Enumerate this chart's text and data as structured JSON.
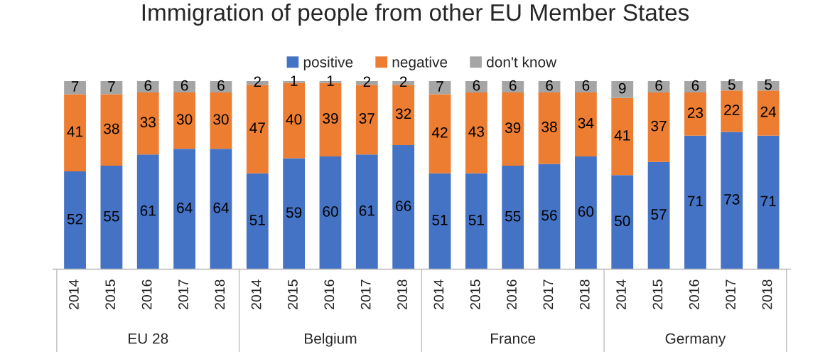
{
  "chart_data": {
    "type": "bar",
    "title": "Immigration of people from other EU Member States",
    "categories": [
      "2014",
      "2015",
      "2016",
      "2017",
      "2018",
      "2014",
      "2015",
      "2016",
      "2017",
      "2018",
      "2014",
      "2015",
      "2016",
      "2017",
      "2018",
      "2014",
      "2015",
      "2016",
      "2017",
      "2018"
    ],
    "series": [
      {
        "name": "positive",
        "color": "#4472c4",
        "values": [
          52,
          55,
          61,
          64,
          64,
          51,
          59,
          60,
          61,
          66,
          51,
          51,
          55,
          56,
          60,
          50,
          57,
          71,
          73,
          71
        ]
      },
      {
        "name": "negative",
        "color": "#ed7d31",
        "values": [
          41,
          38,
          33,
          30,
          30,
          47,
          40,
          39,
          37,
          32,
          42,
          43,
          39,
          38,
          34,
          41,
          37,
          23,
          22,
          24
        ]
      },
      {
        "name": "don't know",
        "color": "#a5a5a5",
        "values": [
          7,
          7,
          6,
          6,
          6,
          2,
          1,
          1,
          2,
          2,
          7,
          6,
          6,
          6,
          6,
          9,
          6,
          6,
          5,
          5
        ]
      }
    ],
    "stacked": true,
    "data_labels": true,
    "legend": "top",
    "annotations": [
      "EU 28",
      "Belgium",
      "France",
      "Germany"
    ]
  }
}
